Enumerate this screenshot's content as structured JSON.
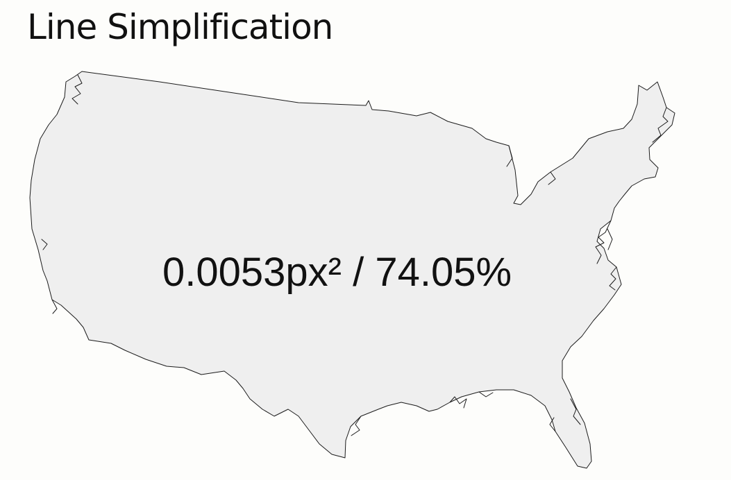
{
  "title": "Line Simplification",
  "stats": {
    "tolerance": "0.0053px²",
    "separator": " / ",
    "retained": "74.05%"
  },
  "map": {
    "region": "contiguous-united-states-outline",
    "fill_color": "#efefef",
    "stroke_color": "#1a1a1a",
    "background_color": "#fdfdfb"
  }
}
